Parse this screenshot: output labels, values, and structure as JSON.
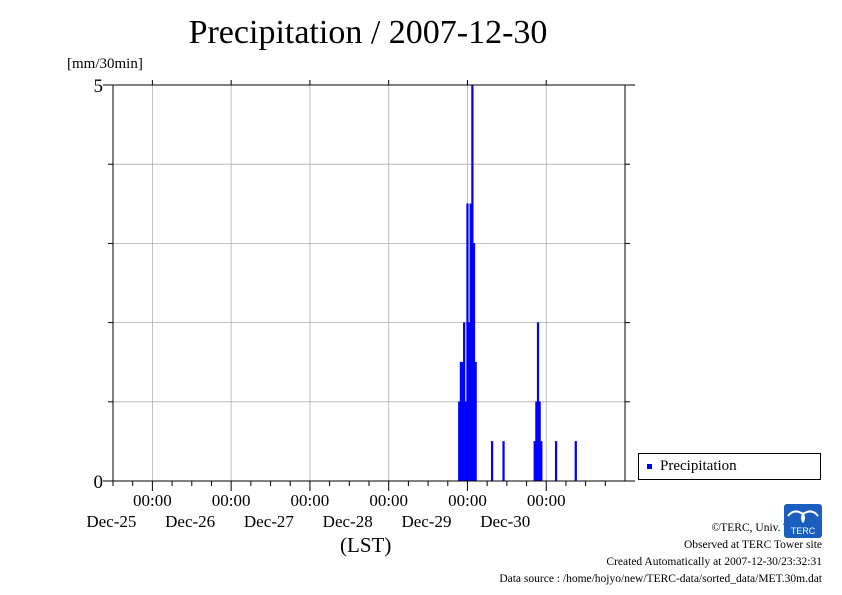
{
  "chart_data": {
    "type": "bar",
    "title": "Precipitation / 2007-12-30",
    "y_unit": "[mm/30min]",
    "xlabel": "(LST)",
    "ylim": [
      0,
      5
    ],
    "y_ticks": [
      0,
      5
    ],
    "x_range": [
      "2007-12-24 12:00",
      "2007-12-30 24:00"
    ],
    "x_ticks": [
      {
        "time": "2007-12-25 00:00",
        "label_time": "00:00",
        "label_date": "Dec-25"
      },
      {
        "time": "2007-12-26 00:00",
        "label_time": "00:00",
        "label_date": "Dec-26"
      },
      {
        "time": "2007-12-27 00:00",
        "label_time": "00:00",
        "label_date": "Dec-27"
      },
      {
        "time": "2007-12-28 00:00",
        "label_time": "00:00",
        "label_date": "Dec-28"
      },
      {
        "time": "2007-12-29 00:00",
        "label_time": "00:00",
        "label_date": "Dec-29"
      },
      {
        "time": "2007-12-30 00:00",
        "label_time": "00:00",
        "label_date": "Dec-30"
      }
    ],
    "grid": true,
    "legend_position": "bottom-right, outside plot",
    "series": [
      {
        "name": "Precipitation",
        "color": "#0000ff",
        "points": [
          {
            "t": "2007-12-28 21:30",
            "v": 1.0
          },
          {
            "t": "2007-12-28 22:00",
            "v": 1.5
          },
          {
            "t": "2007-12-28 22:30",
            "v": 1.5
          },
          {
            "t": "2007-12-28 23:00",
            "v": 2.0
          },
          {
            "t": "2007-12-28 23:30",
            "v": 1.0
          },
          {
            "t": "2007-12-29 00:00",
            "v": 3.5
          },
          {
            "t": "2007-12-29 00:30",
            "v": 2.0
          },
          {
            "t": "2007-12-29 01:00",
            "v": 3.5
          },
          {
            "t": "2007-12-29 01:30",
            "v": 5.0
          },
          {
            "t": "2007-12-29 02:00",
            "v": 3.0
          },
          {
            "t": "2007-12-29 02:30",
            "v": 1.5
          },
          {
            "t": "2007-12-29 07:30",
            "v": 0.5
          },
          {
            "t": "2007-12-29 11:00",
            "v": 0.5
          },
          {
            "t": "2007-12-29 20:30",
            "v": 0.5
          },
          {
            "t": "2007-12-29 21:00",
            "v": 1.0
          },
          {
            "t": "2007-12-29 21:30",
            "v": 2.0
          },
          {
            "t": "2007-12-29 22:00",
            "v": 1.0
          },
          {
            "t": "2007-12-29 22:30",
            "v": 0.5
          },
          {
            "t": "2007-12-30 03:00",
            "v": 0.5
          },
          {
            "t": "2007-12-30 09:00",
            "v": 0.5
          }
        ]
      }
    ]
  },
  "footer": {
    "copyright": "©TERC, Univ. Tsukuba",
    "observed": "Observed at TERC Tower site",
    "created": "Created Automatically at 2007-12-30/23:32:31",
    "source": "Data source : /home/hojyo/new/TERC-data/sorted_data/MET.30m.dat"
  },
  "logo": {
    "text": "TERC",
    "icon": "terc-logo-icon",
    "color": "#1a5fc0"
  }
}
